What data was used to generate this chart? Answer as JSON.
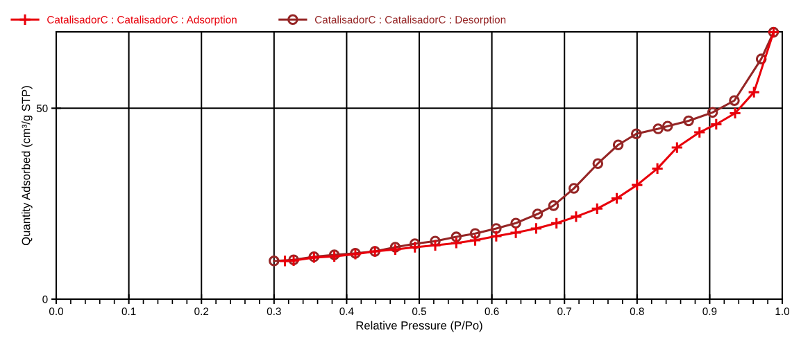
{
  "chart_data": {
    "type": "line",
    "xlabel": "Relative Pressure (P/Po)",
    "ylabel": "Quantity Adsorbed (cm³/g STP)",
    "xlim": [
      0,
      1.0
    ],
    "xticks": [
      {
        "value": 0,
        "label": "0.0"
      },
      0.1,
      0.2,
      0.3,
      0.4,
      0.5,
      0.6,
      0.7,
      0.8,
      0.9,
      {
        "value": 1.0,
        "label": "1.0"
      }
    ],
    "ylim": [
      0,
      70
    ],
    "yticks": [
      0,
      50
    ],
    "grid": true,
    "legend": "top",
    "series": [
      {
        "name": "CatalisadorC : CatalisadorC : Adsorption",
        "color": "#e8000b",
        "marker": "cross",
        "x": [
          0.315,
          0.327,
          0.355,
          0.383,
          0.412,
          0.439,
          0.467,
          0.494,
          0.522,
          0.551,
          0.577,
          0.606,
          0.633,
          0.661,
          0.689,
          0.716,
          0.745,
          0.772,
          0.8,
          0.828,
          0.855,
          0.886,
          0.909,
          0.935,
          0.961,
          0.988
        ],
        "values": [
          10.0,
          10.1,
          10.9,
          11.2,
          11.8,
          12.5,
          13.0,
          13.6,
          14.1,
          14.7,
          15.4,
          16.5,
          17.4,
          18.5,
          19.9,
          21.6,
          23.7,
          26.4,
          29.9,
          34.2,
          39.7,
          43.7,
          45.8,
          48.7,
          54.2,
          69.9
        ]
      },
      {
        "name": "CatalisadorC : CatalisadorC : Desorption",
        "color": "#952525",
        "marker": "circle",
        "x": [
          0.988,
          0.971,
          0.934,
          0.904,
          0.871,
          0.842,
          0.829,
          0.799,
          0.774,
          0.746,
          0.713,
          0.685,
          0.663,
          0.633,
          0.606,
          0.577,
          0.551,
          0.522,
          0.494,
          0.467,
          0.439,
          0.412,
          0.383,
          0.355,
          0.327,
          0.3
        ],
        "values": [
          69.9,
          62.9,
          52.0,
          48.9,
          46.7,
          45.3,
          44.6,
          43.3,
          40.4,
          35.5,
          29.0,
          24.5,
          22.3,
          19.9,
          18.5,
          17.2,
          16.3,
          15.2,
          14.5,
          13.6,
          12.5,
          12.0,
          11.6,
          11.1,
          10.3,
          10.0
        ]
      }
    ]
  }
}
